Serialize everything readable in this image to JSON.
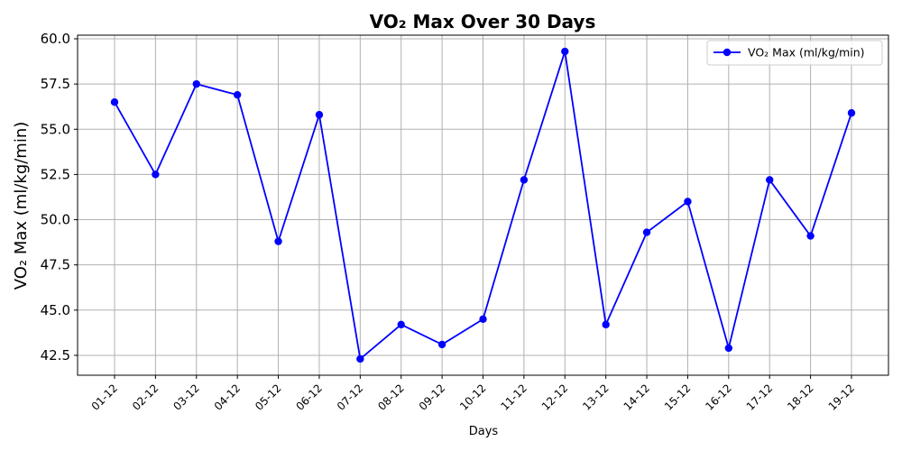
{
  "chart_data": {
    "type": "line",
    "title": "VO₂ Max Over 30 Days",
    "xlabel": "Days",
    "ylabel": "VO₂ Max (ml/kg/min)",
    "categories": [
      "01-12",
      "02-12",
      "03-12",
      "04-12",
      "05-12",
      "06-12",
      "07-12",
      "08-12",
      "09-12",
      "10-12",
      "11-12",
      "12-12",
      "13-12",
      "14-12",
      "15-12",
      "16-12",
      "17-12",
      "18-12",
      "19-12"
    ],
    "series": [
      {
        "name": "VO₂ Max (ml/kg/min)",
        "color": "#0000ff",
        "marker": "circle",
        "values": [
          56.5,
          52.5,
          57.5,
          56.9,
          48.8,
          55.8,
          42.3,
          44.2,
          43.1,
          44.5,
          52.2,
          59.3,
          44.2,
          49.3,
          51.0,
          42.9,
          52.2,
          49.1,
          55.9
        ]
      }
    ],
    "ylim": [
      41.4,
      60.2
    ],
    "yticks": [
      "42.5",
      "45.0",
      "47.5",
      "50.0",
      "52.5",
      "55.0",
      "57.5",
      "60.0"
    ],
    "grid": true,
    "legend_position": "top-right"
  }
}
